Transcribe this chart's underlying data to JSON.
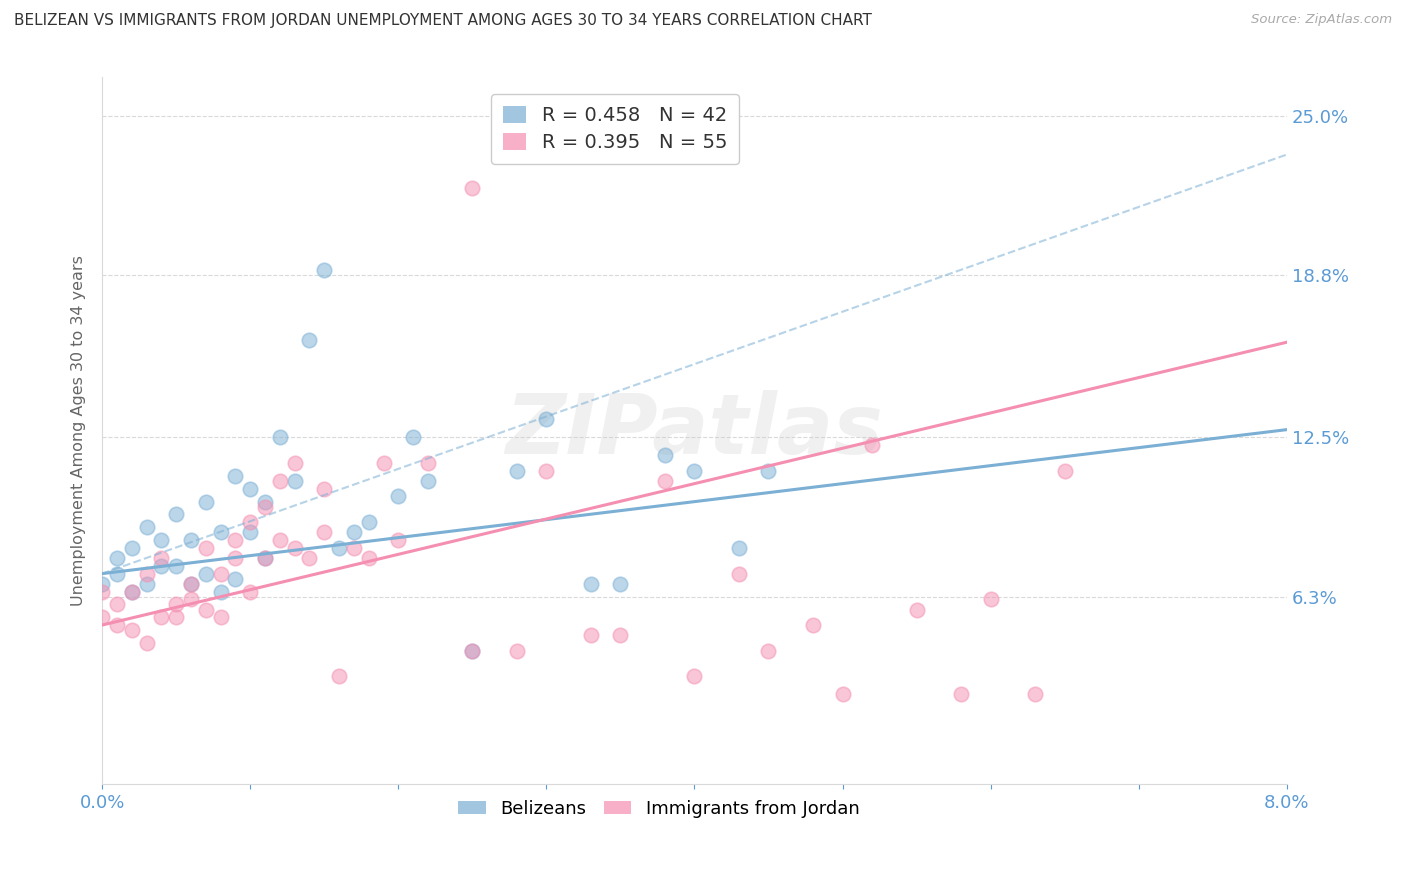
{
  "title": "BELIZEAN VS IMMIGRANTS FROM JORDAN UNEMPLOYMENT AMONG AGES 30 TO 34 YEARS CORRELATION CHART",
  "source": "Source: ZipAtlas.com",
  "ylabel": "Unemployment Among Ages 30 to 34 years",
  "xlim": [
    0.0,
    0.08
  ],
  "ylim": [
    -0.01,
    0.265
  ],
  "xticks": [
    0.0,
    0.01,
    0.02,
    0.03,
    0.04,
    0.05,
    0.06,
    0.07,
    0.08
  ],
  "xticklabels": [
    "0.0%",
    "",
    "",
    "",
    "",
    "",
    "",
    "",
    "8.0%"
  ],
  "ytick_positions": [
    0.063,
    0.125,
    0.188,
    0.25
  ],
  "ytick_labels": [
    "6.3%",
    "12.5%",
    "18.8%",
    "25.0%"
  ],
  "watermark_text": "ZIPatlas",
  "blue_R": 0.458,
  "blue_N": 42,
  "pink_R": 0.395,
  "pink_N": 55,
  "blue_color": "#7BAFD4",
  "pink_color": "#F48FB1",
  "blue_label": "Belizeans",
  "pink_label": "Immigrants from Jordan",
  "blue_scatter_x": [
    0.0,
    0.001,
    0.001,
    0.002,
    0.002,
    0.003,
    0.003,
    0.004,
    0.004,
    0.005,
    0.005,
    0.006,
    0.006,
    0.007,
    0.007,
    0.008,
    0.008,
    0.009,
    0.009,
    0.01,
    0.01,
    0.011,
    0.011,
    0.012,
    0.013,
    0.014,
    0.015,
    0.016,
    0.017,
    0.018,
    0.02,
    0.021,
    0.022,
    0.025,
    0.028,
    0.03,
    0.033,
    0.035,
    0.038,
    0.04,
    0.043,
    0.045
  ],
  "blue_scatter_y": [
    0.068,
    0.072,
    0.078,
    0.065,
    0.082,
    0.068,
    0.09,
    0.075,
    0.085,
    0.075,
    0.095,
    0.068,
    0.085,
    0.072,
    0.1,
    0.065,
    0.088,
    0.07,
    0.11,
    0.088,
    0.105,
    0.078,
    0.1,
    0.125,
    0.108,
    0.163,
    0.19,
    0.082,
    0.088,
    0.092,
    0.102,
    0.125,
    0.108,
    0.042,
    0.112,
    0.132,
    0.068,
    0.068,
    0.118,
    0.112,
    0.082,
    0.112
  ],
  "pink_scatter_x": [
    0.0,
    0.0,
    0.001,
    0.001,
    0.002,
    0.002,
    0.003,
    0.003,
    0.004,
    0.004,
    0.005,
    0.005,
    0.006,
    0.006,
    0.007,
    0.007,
    0.008,
    0.008,
    0.009,
    0.009,
    0.01,
    0.01,
    0.011,
    0.011,
    0.012,
    0.012,
    0.013,
    0.013,
    0.014,
    0.015,
    0.015,
    0.016,
    0.017,
    0.018,
    0.019,
    0.02,
    0.022,
    0.025,
    0.025,
    0.028,
    0.03,
    0.033,
    0.035,
    0.038,
    0.04,
    0.043,
    0.045,
    0.048,
    0.05,
    0.052,
    0.055,
    0.058,
    0.06,
    0.063,
    0.065
  ],
  "pink_scatter_y": [
    0.055,
    0.065,
    0.052,
    0.06,
    0.05,
    0.065,
    0.045,
    0.072,
    0.055,
    0.078,
    0.06,
    0.055,
    0.062,
    0.068,
    0.058,
    0.082,
    0.072,
    0.055,
    0.085,
    0.078,
    0.065,
    0.092,
    0.078,
    0.098,
    0.085,
    0.108,
    0.082,
    0.115,
    0.078,
    0.088,
    0.105,
    0.032,
    0.082,
    0.078,
    0.115,
    0.085,
    0.115,
    0.222,
    0.042,
    0.042,
    0.112,
    0.048,
    0.048,
    0.108,
    0.032,
    0.072,
    0.042,
    0.052,
    0.025,
    0.122,
    0.058,
    0.025,
    0.062,
    0.025,
    0.112
  ],
  "blue_line_x0": 0.0,
  "blue_line_y0": 0.072,
  "blue_line_x1": 0.08,
  "blue_line_y1": 0.128,
  "pink_line_x0": 0.0,
  "pink_line_y0": 0.052,
  "pink_line_x1": 0.08,
  "pink_line_y1": 0.162,
  "dash_line_x0": 0.0,
  "dash_line_y0": 0.072,
  "dash_line_x1": 0.08,
  "dash_line_y1": 0.235,
  "title_fontsize": 11,
  "axis_label_color": "#5B9BD5",
  "grid_color": "#D9D9D9",
  "background_color": "#FFFFFF"
}
